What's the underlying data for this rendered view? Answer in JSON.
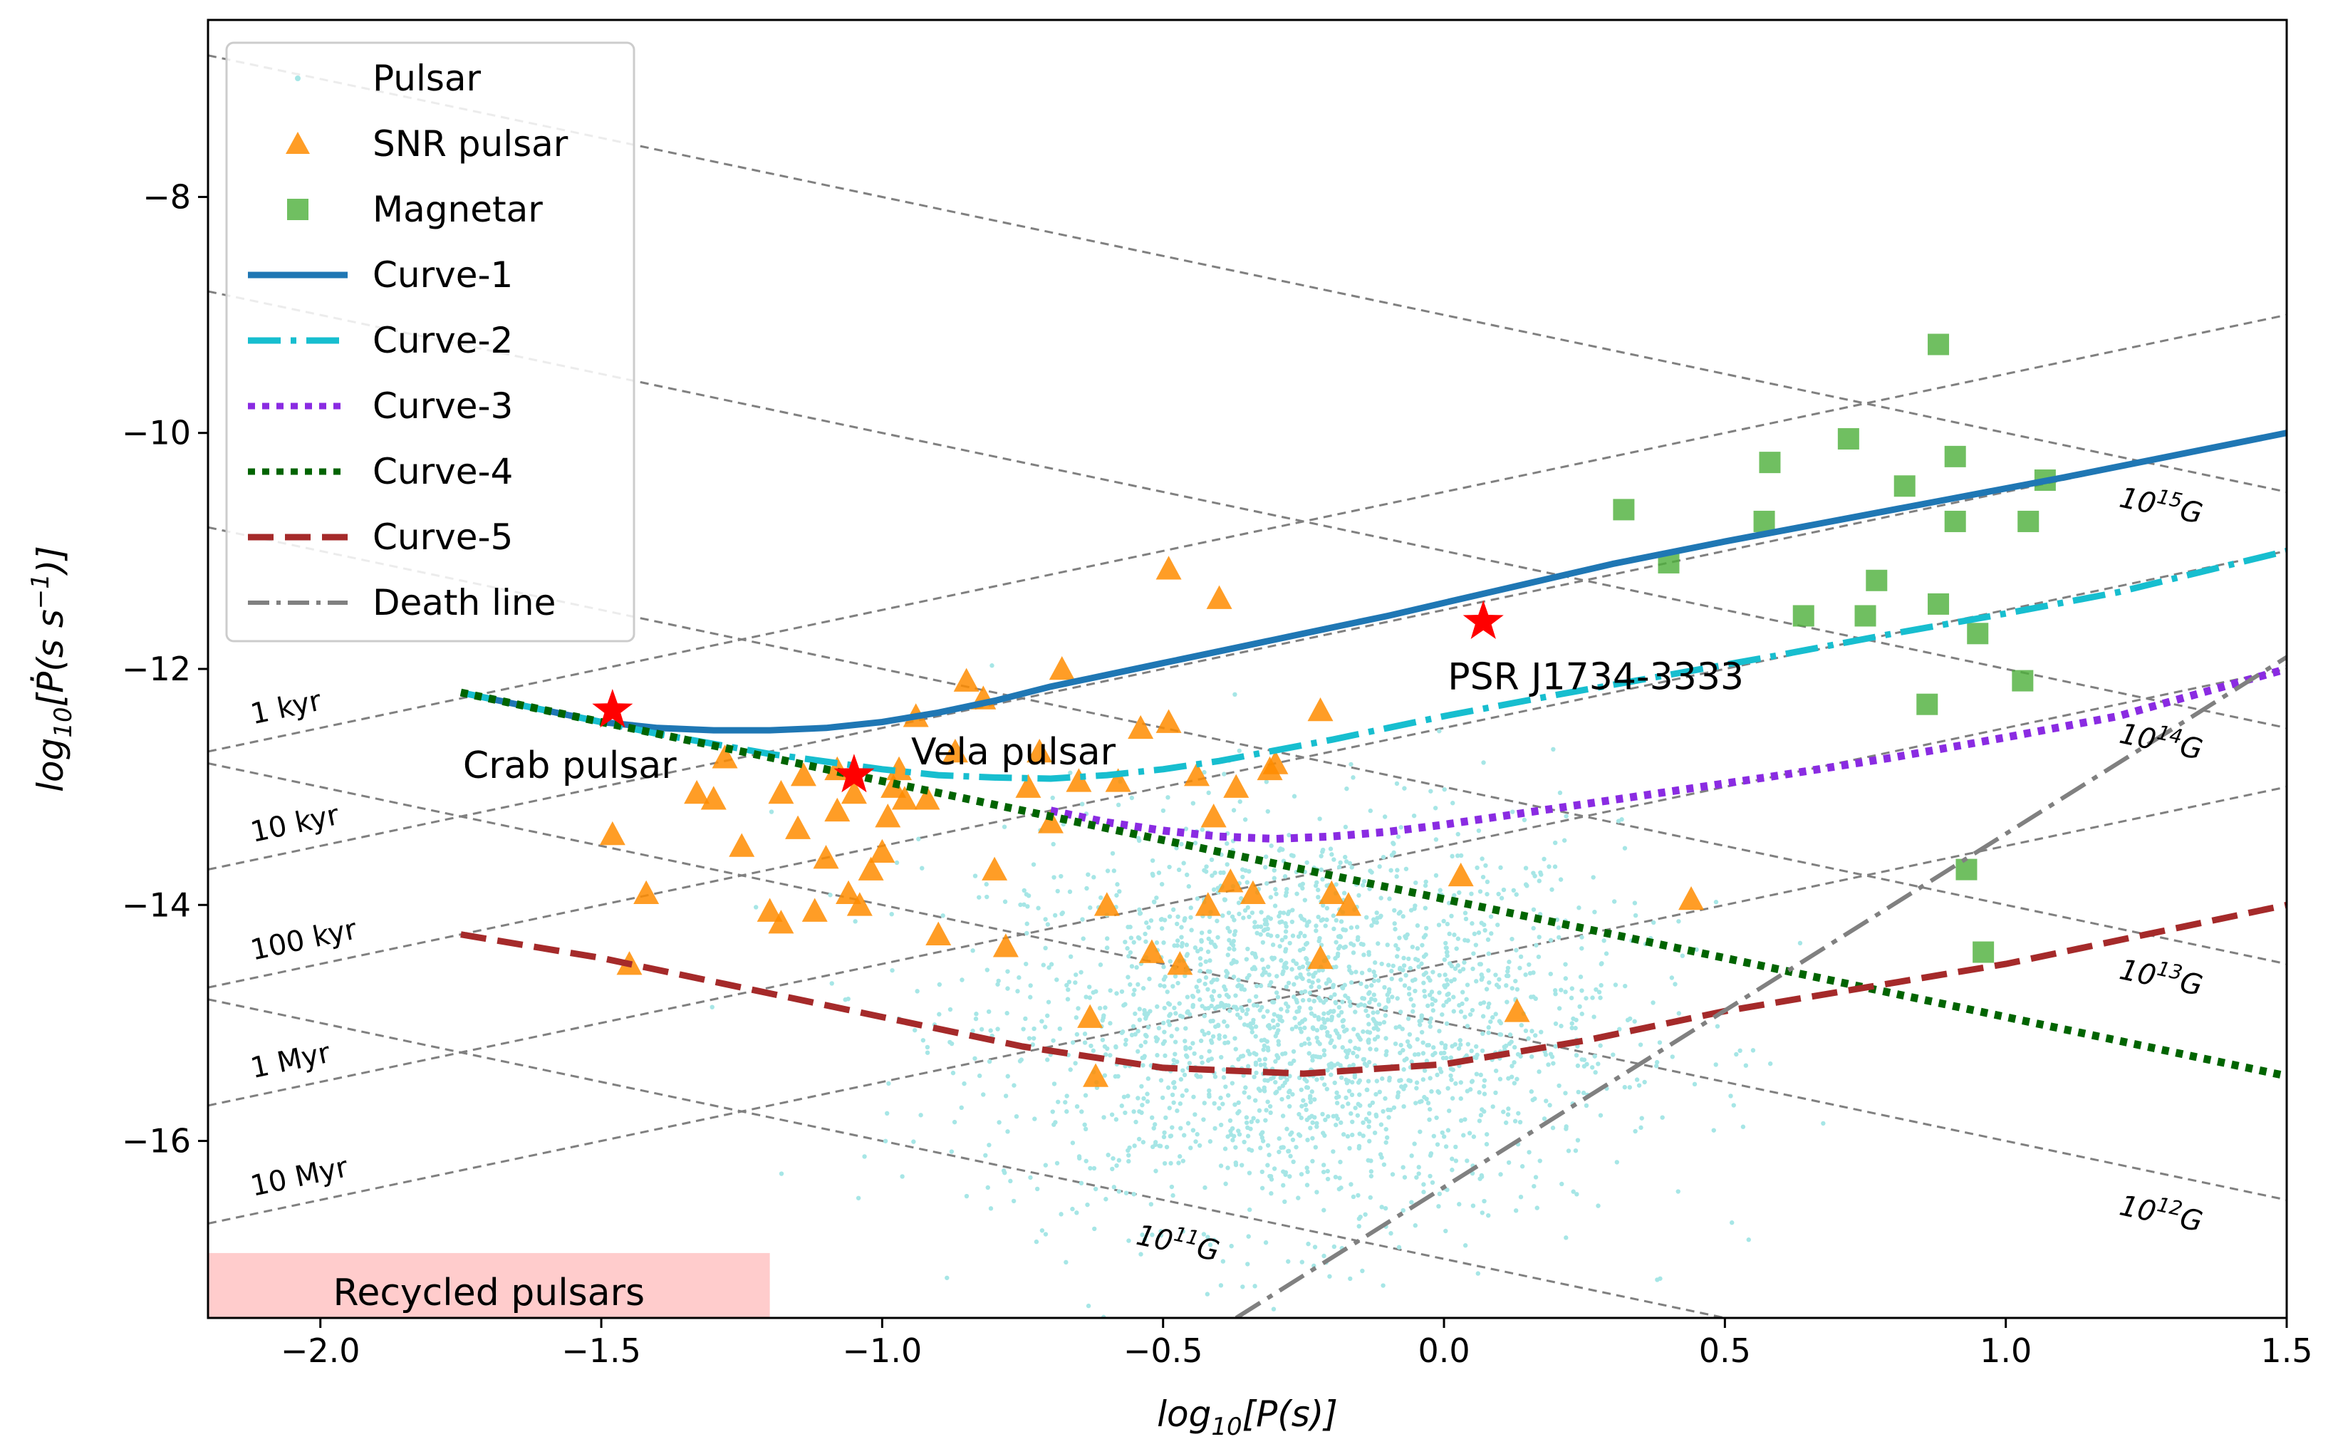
{
  "colors": {
    "pulsar": "#a6e6e6",
    "snr_pulsar": "#ff8c00",
    "magnetar": "#4caf3a",
    "curve_1": "#1f77b4",
    "curve_2": "#17becf",
    "curve_3": "#8a2be2",
    "curve_4": "#006400",
    "curve_5": "#a52a2a",
    "death_line": "#808080",
    "star": "#ff0000",
    "recycled_region": "#ffcccc",
    "guide_line": "#808080"
  },
  "chart_data": {
    "type": "scatter",
    "xlabel": "log10[P(s)]",
    "ylabel": "log10[Ṗ(s s^-1)]",
    "xlim": [
      -2.2,
      1.5
    ],
    "ylim": [
      -17.5,
      -6.5
    ],
    "x_ticks": [
      -2.0,
      -1.5,
      -1.0,
      -0.5,
      0.0,
      0.5,
      1.0,
      1.5
    ],
    "x_tick_labels": [
      "−2.0",
      "−1.5",
      "−1.0",
      "−0.5",
      "0.0",
      "0.5",
      "1.0",
      "1.5"
    ],
    "y_ticks": [
      -16,
      -14,
      -12,
      -10,
      -8
    ],
    "y_tick_labels": [
      "−16",
      "−14",
      "−12",
      "−10",
      "−8"
    ],
    "legend": {
      "position": "upper-left",
      "items": [
        {
          "key": "pulsar",
          "label": "Pulsar",
          "marker": "dot"
        },
        {
          "key": "snr_pulsar",
          "label": "SNR pulsar",
          "marker": "triangle"
        },
        {
          "key": "magnetar",
          "label": "Magnetar",
          "marker": "square"
        },
        {
          "key": "curve_1",
          "label": "Curve-1",
          "marker": "solid"
        },
        {
          "key": "curve_2",
          "label": "Curve-2",
          "marker": "dashdot"
        },
        {
          "key": "curve_3",
          "label": "Curve-3",
          "marker": "dotted"
        },
        {
          "key": "curve_4",
          "label": "Curve-4",
          "marker": "dotted"
        },
        {
          "key": "curve_5",
          "label": "Curve-5",
          "marker": "dashed"
        },
        {
          "key": "death_line",
          "label": "Death line",
          "marker": "dashdot"
        }
      ]
    },
    "pulsar_cloud": {
      "count": 2200,
      "x_center": -0.25,
      "x_sd": 0.28,
      "y_center": -15.0,
      "y_sd": 0.85
    },
    "snr_pulsars": [
      [
        -1.48,
        -13.4
      ],
      [
        -1.45,
        -14.5
      ],
      [
        -1.42,
        -13.9
      ],
      [
        -1.33,
        -13.05
      ],
      [
        -1.3,
        -13.1
      ],
      [
        -1.28,
        -12.75
      ],
      [
        -1.25,
        -13.5
      ],
      [
        -1.2,
        -14.05
      ],
      [
        -1.18,
        -14.15
      ],
      [
        -1.18,
        -13.05
      ],
      [
        -1.15,
        -13.35
      ],
      [
        -1.14,
        -12.9
      ],
      [
        -1.12,
        -14.05
      ],
      [
        -1.1,
        -13.6
      ],
      [
        -1.08,
        -13.2
      ],
      [
        -1.08,
        -12.85
      ],
      [
        -1.06,
        -13.9
      ],
      [
        -1.05,
        -13.05
      ],
      [
        -1.04,
        -14.0
      ],
      [
        -1.02,
        -13.7
      ],
      [
        -1.0,
        -13.55
      ],
      [
        -0.99,
        -13.25
      ],
      [
        -0.98,
        -13.0
      ],
      [
        -0.97,
        -12.85
      ],
      [
        -0.96,
        -13.1
      ],
      [
        -0.94,
        -12.4
      ],
      [
        -0.92,
        -13.1
      ],
      [
        -0.9,
        -14.25
      ],
      [
        -0.87,
        -12.7
      ],
      [
        -0.85,
        -12.1
      ],
      [
        -0.82,
        -12.25
      ],
      [
        -0.8,
        -13.7
      ],
      [
        -0.78,
        -14.35
      ],
      [
        -0.74,
        -13.0
      ],
      [
        -0.72,
        -12.7
      ],
      [
        -0.7,
        -13.3
      ],
      [
        -0.68,
        -12.0
      ],
      [
        -0.65,
        -12.95
      ],
      [
        -0.63,
        -14.95
      ],
      [
        -0.62,
        -15.45
      ],
      [
        -0.6,
        -14.0
      ],
      [
        -0.58,
        -12.95
      ],
      [
        -0.54,
        -12.5
      ],
      [
        -0.52,
        -14.4
      ],
      [
        -0.49,
        -11.15
      ],
      [
        -0.49,
        -12.45
      ],
      [
        -0.47,
        -14.5
      ],
      [
        -0.44,
        -12.9
      ],
      [
        -0.42,
        -14.0
      ],
      [
        -0.41,
        -13.25
      ],
      [
        -0.4,
        -11.4
      ],
      [
        -0.38,
        -13.8
      ],
      [
        -0.37,
        -13.0
      ],
      [
        -0.34,
        -13.9
      ],
      [
        -0.31,
        -12.85
      ],
      [
        -0.3,
        -12.8
      ],
      [
        -0.22,
        -14.45
      ],
      [
        -0.22,
        -12.35
      ],
      [
        -0.2,
        -13.9
      ],
      [
        -0.17,
        -14.0
      ],
      [
        0.03,
        -13.75
      ],
      [
        0.13,
        -14.9
      ],
      [
        0.44,
        -13.95
      ]
    ],
    "magnetars": [
      [
        0.32,
        -10.65
      ],
      [
        0.4,
        -11.1
      ],
      [
        0.57,
        -10.75
      ],
      [
        0.58,
        -10.25
      ],
      [
        0.64,
        -11.55
      ],
      [
        0.72,
        -10.05
      ],
      [
        0.75,
        -11.55
      ],
      [
        0.77,
        -11.25
      ],
      [
        0.82,
        -10.45
      ],
      [
        0.86,
        -12.3
      ],
      [
        0.88,
        -11.45
      ],
      [
        0.88,
        -9.25
      ],
      [
        0.91,
        -10.2
      ],
      [
        0.91,
        -10.75
      ],
      [
        0.93,
        -13.7
      ],
      [
        0.95,
        -11.7
      ],
      [
        0.96,
        -14.4
      ],
      [
        1.03,
        -12.1
      ],
      [
        1.04,
        -10.75
      ],
      [
        1.07,
        -10.4
      ]
    ],
    "curves": [
      {
        "key": "curve_1",
        "name": "Curve-1",
        "style": "solid",
        "x": [
          -1.75,
          -1.6,
          -1.5,
          -1.4,
          -1.3,
          -1.2,
          -1.1,
          -1.0,
          -0.9,
          -0.8,
          -0.7,
          -0.6,
          -0.5,
          -0.4,
          -0.3,
          -0.2,
          -0.1,
          0.0,
          0.1,
          0.2,
          0.3,
          0.5,
          0.7,
          0.9,
          1.1,
          1.3,
          1.5
        ],
        "y": [
          -12.2,
          -12.35,
          -12.45,
          -12.5,
          -12.52,
          -12.52,
          -12.5,
          -12.45,
          -12.37,
          -12.27,
          -12.15,
          -12.05,
          -11.95,
          -11.85,
          -11.75,
          -11.65,
          -11.55,
          -11.44,
          -11.33,
          -11.22,
          -11.11,
          -10.92,
          -10.74,
          -10.56,
          -10.38,
          -10.19,
          -10.0
        ]
      },
      {
        "key": "curve_2",
        "name": "Curve-2",
        "style": "dashdot",
        "x": [
          -1.75,
          -1.6,
          -1.4,
          -1.2,
          -1.0,
          -0.9,
          -0.8,
          -0.7,
          -0.6,
          -0.5,
          -0.4,
          -0.3,
          -0.2,
          -0.1,
          0.0,
          0.2,
          0.4,
          0.6,
          0.8,
          1.0,
          1.2,
          1.5
        ],
        "y": [
          -12.2,
          -12.35,
          -12.55,
          -12.72,
          -12.85,
          -12.9,
          -12.92,
          -12.93,
          -12.9,
          -12.85,
          -12.78,
          -12.69,
          -12.6,
          -12.5,
          -12.4,
          -12.22,
          -12.05,
          -11.88,
          -11.7,
          -11.53,
          -11.35,
          -11.0
        ]
      },
      {
        "key": "curve_3",
        "name": "Curve-3",
        "style": "dotted",
        "x": [
          -0.7,
          -0.6,
          -0.5,
          -0.4,
          -0.3,
          -0.2,
          -0.1,
          0.0,
          0.1,
          0.2,
          0.4,
          0.6,
          0.8,
          1.0,
          1.2,
          1.5
        ],
        "y": [
          -13.2,
          -13.3,
          -13.37,
          -13.42,
          -13.44,
          -13.42,
          -13.38,
          -13.32,
          -13.25,
          -13.18,
          -13.04,
          -12.9,
          -12.75,
          -12.58,
          -12.4,
          -12.0
        ]
      },
      {
        "key": "curve_4",
        "name": "Curve-4",
        "style": "dotted",
        "x": [
          -1.75,
          -1.5,
          -1.25,
          -1.0,
          -0.75,
          -0.5,
          -0.25,
          0.0,
          0.25,
          0.5,
          0.75,
          1.0,
          1.25,
          1.5
        ],
        "y": [
          -12.2,
          -12.45,
          -12.7,
          -12.95,
          -13.2,
          -13.45,
          -13.7,
          -13.95,
          -14.2,
          -14.45,
          -14.7,
          -14.95,
          -15.2,
          -15.45
        ]
      },
      {
        "key": "curve_5",
        "name": "Curve-5",
        "style": "dashed",
        "x": [
          -1.75,
          -1.5,
          -1.25,
          -1.0,
          -0.75,
          -0.5,
          -0.25,
          0.0,
          0.25,
          0.5,
          0.75,
          1.0,
          1.25,
          1.5
        ],
        "y": [
          -14.25,
          -14.45,
          -14.7,
          -14.95,
          -15.2,
          -15.38,
          -15.43,
          -15.35,
          -15.15,
          -14.9,
          -14.7,
          -14.5,
          -14.25,
          -14.0
        ]
      },
      {
        "key": "death_line",
        "name": "Death line",
        "style": "dashdot",
        "x": [
          -0.37,
          1.5
        ],
        "y": [
          -17.5,
          -11.9
        ]
      }
    ],
    "age_lines": [
      {
        "label": "1 kyr",
        "y_at_xmin": -12.7
      },
      {
        "label": "10 kyr",
        "y_at_xmin": -13.7
      },
      {
        "label": "100 kyr",
        "y_at_xmin": -14.7
      },
      {
        "label": "1 Myr",
        "y_at_xmin": -15.7
      },
      {
        "label": "10 Myr",
        "y_at_xmin": -16.7
      }
    ],
    "field_lines": [
      {
        "label_base": "10",
        "label_exp": "15",
        "label_unit": "G",
        "y_at_xmin": -6.8,
        "y_at_xmax": -10.5
      },
      {
        "label_base": "10",
        "label_exp": "14",
        "label_unit": "G",
        "y_at_xmin": -8.8,
        "y_at_xmax": -12.5
      },
      {
        "label_base": "10",
        "label_exp": "13",
        "label_unit": "G",
        "y_at_xmin": -10.8,
        "y_at_xmax": -14.5
      },
      {
        "label_base": "10",
        "label_exp": "12",
        "label_unit": "G",
        "y_at_xmin": -12.8,
        "y_at_xmax": -16.5
      },
      {
        "label_base": "10",
        "label_exp": "11",
        "label_unit": "G",
        "y_at_xmin": -14.8,
        "y_at_xmax": -18.5
      }
    ],
    "special_pulsars": [
      {
        "name": "Crab pulsar",
        "x": -1.48,
        "y": -12.35
      },
      {
        "name": "Vela pulsar",
        "x": -1.05,
        "y": -12.9
      },
      {
        "name": "PSR J1734-3333",
        "x": 0.07,
        "y": -11.6
      }
    ],
    "recycled_region": {
      "label": "Recycled pulsars",
      "x_range": [
        -2.2,
        -1.2
      ],
      "y_range": [
        -17.5,
        -16.95
      ]
    }
  }
}
